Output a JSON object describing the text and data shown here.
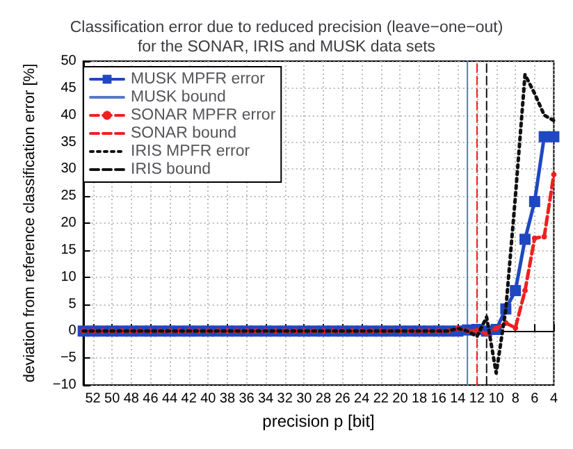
{
  "chart_data": {
    "type": "line",
    "title": "Classification error due to reduced precision (leave−one−out)\nfor the SONAR, IRIS and MUSK data sets",
    "xlabel": "precision p [bit]",
    "ylabel": "deviation from reference classification error [%]",
    "x": [
      53,
      52,
      51,
      50,
      49,
      48,
      47,
      46,
      45,
      44,
      43,
      42,
      41,
      40,
      39,
      38,
      37,
      36,
      35,
      34,
      33,
      32,
      31,
      30,
      29,
      28,
      27,
      26,
      25,
      24,
      23,
      22,
      21,
      20,
      19,
      18,
      17,
      16,
      15,
      14,
      13,
      12,
      11,
      10,
      9,
      8,
      7,
      6,
      5,
      4
    ],
    "series": [
      {
        "name": "MUSK MPFR error",
        "color": "#1f48c0",
        "marker": "square",
        "line_style": "solid",
        "values": [
          0,
          0,
          0,
          0,
          0,
          0,
          0,
          0,
          0,
          0,
          0,
          0,
          0,
          0,
          0,
          0,
          0,
          0,
          0,
          0,
          0,
          0,
          0,
          0,
          0,
          0,
          0,
          0,
          0,
          0,
          0,
          0,
          0,
          0,
          0,
          0,
          0,
          0,
          0,
          0,
          0.2,
          0.3,
          0,
          0.3,
          4.1,
          7.5,
          17,
          24,
          36,
          36
        ]
      },
      {
        "name": "MUSK bound",
        "color": "#5a78c8",
        "marker": "none",
        "line_style": "solid",
        "x": [
          13,
          13
        ],
        "values": [
          -10,
          50
        ]
      },
      {
        "name": "SONAR MPFR error",
        "color": "#f02020",
        "marker": "circle",
        "line_style": "dashed",
        "values": [
          0,
          0,
          0,
          0,
          0,
          0,
          0,
          0,
          0,
          0,
          0,
          0,
          0,
          0,
          0,
          0,
          0,
          0,
          0,
          0,
          0,
          0,
          0,
          0,
          0,
          0,
          0,
          0,
          0,
          0,
          0,
          0,
          0,
          0,
          0,
          0,
          0,
          0,
          0,
          0.5,
          0,
          0.1,
          -0.5,
          0.5,
          1.5,
          0.6,
          7.5,
          17.2,
          17.5,
          29
        ]
      },
      {
        "name": "SONAR bound",
        "color": "#f02020",
        "marker": "none",
        "line_style": "dashed",
        "x": [
          12,
          12
        ],
        "values": [
          -10,
          50
        ]
      },
      {
        "name": "IRIS MPFR error",
        "color": "#111111",
        "marker": "none",
        "line_style": "dotted",
        "values": [
          0,
          0,
          0,
          0,
          0,
          0,
          0,
          0,
          0,
          0,
          0,
          0,
          0,
          0,
          0,
          0,
          0,
          0,
          0,
          0,
          0,
          0,
          0,
          0,
          0,
          0,
          0,
          0,
          0,
          0,
          0,
          0,
          0,
          0,
          0,
          0,
          0,
          0,
          0,
          0.5,
          0,
          -1,
          2.6,
          -7.8,
          4,
          25,
          47.5,
          44,
          40,
          39
        ]
      },
      {
        "name": "IRIS bound",
        "color": "#111111",
        "marker": "none",
        "line_style": "dashed",
        "x": [
          11,
          11
        ],
        "values": [
          -10,
          50
        ]
      }
    ],
    "xlim": [
      53,
      4
    ],
    "xticks": [
      52,
      50,
      48,
      46,
      44,
      42,
      40,
      38,
      36,
      34,
      32,
      30,
      28,
      26,
      24,
      22,
      20,
      18,
      16,
      14,
      12,
      10,
      8,
      6,
      4
    ],
    "ylim": [
      -10,
      50
    ],
    "yticks": [
      -10,
      -5,
      0,
      5,
      10,
      15,
      20,
      25,
      30,
      35,
      40,
      45,
      50
    ],
    "grid": true,
    "legend": "top left"
  }
}
